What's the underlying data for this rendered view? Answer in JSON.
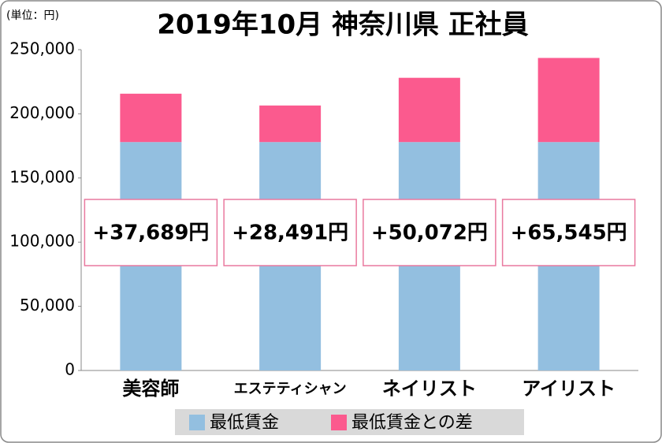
{
  "chart_data": {
    "type": "stacked_bar",
    "title": "2019年10月 神奈川県 正社員",
    "unit_note": "(単位：円)",
    "categories": [
      "美容師",
      "エステティシャン",
      "ネイリスト",
      "アイリスト"
    ],
    "series": [
      {
        "name": "最低賃金",
        "color": "#93bfe0",
        "values": [
          178000,
          178000,
          178000,
          178000
        ]
      },
      {
        "name": "最低賃金との差",
        "color": "#fb5a8e",
        "values": [
          37689,
          28491,
          50072,
          65545
        ],
        "value_labels": [
          "+37,689円",
          "+28,491円",
          "+50,072円",
          "+65,545円"
        ]
      }
    ],
    "ylim": [
      0,
      250000
    ],
    "yticks": [
      0,
      {
        "value": 50000,
        "label": "50,000"
      },
      {
        "value": 100000,
        "label": "100,000"
      },
      {
        "value": 150000,
        "label": "150,000"
      },
      {
        "value": 200000,
        "label": "200,000"
      },
      {
        "value": 250000,
        "label": "250,000"
      }
    ],
    "grid": false
  }
}
